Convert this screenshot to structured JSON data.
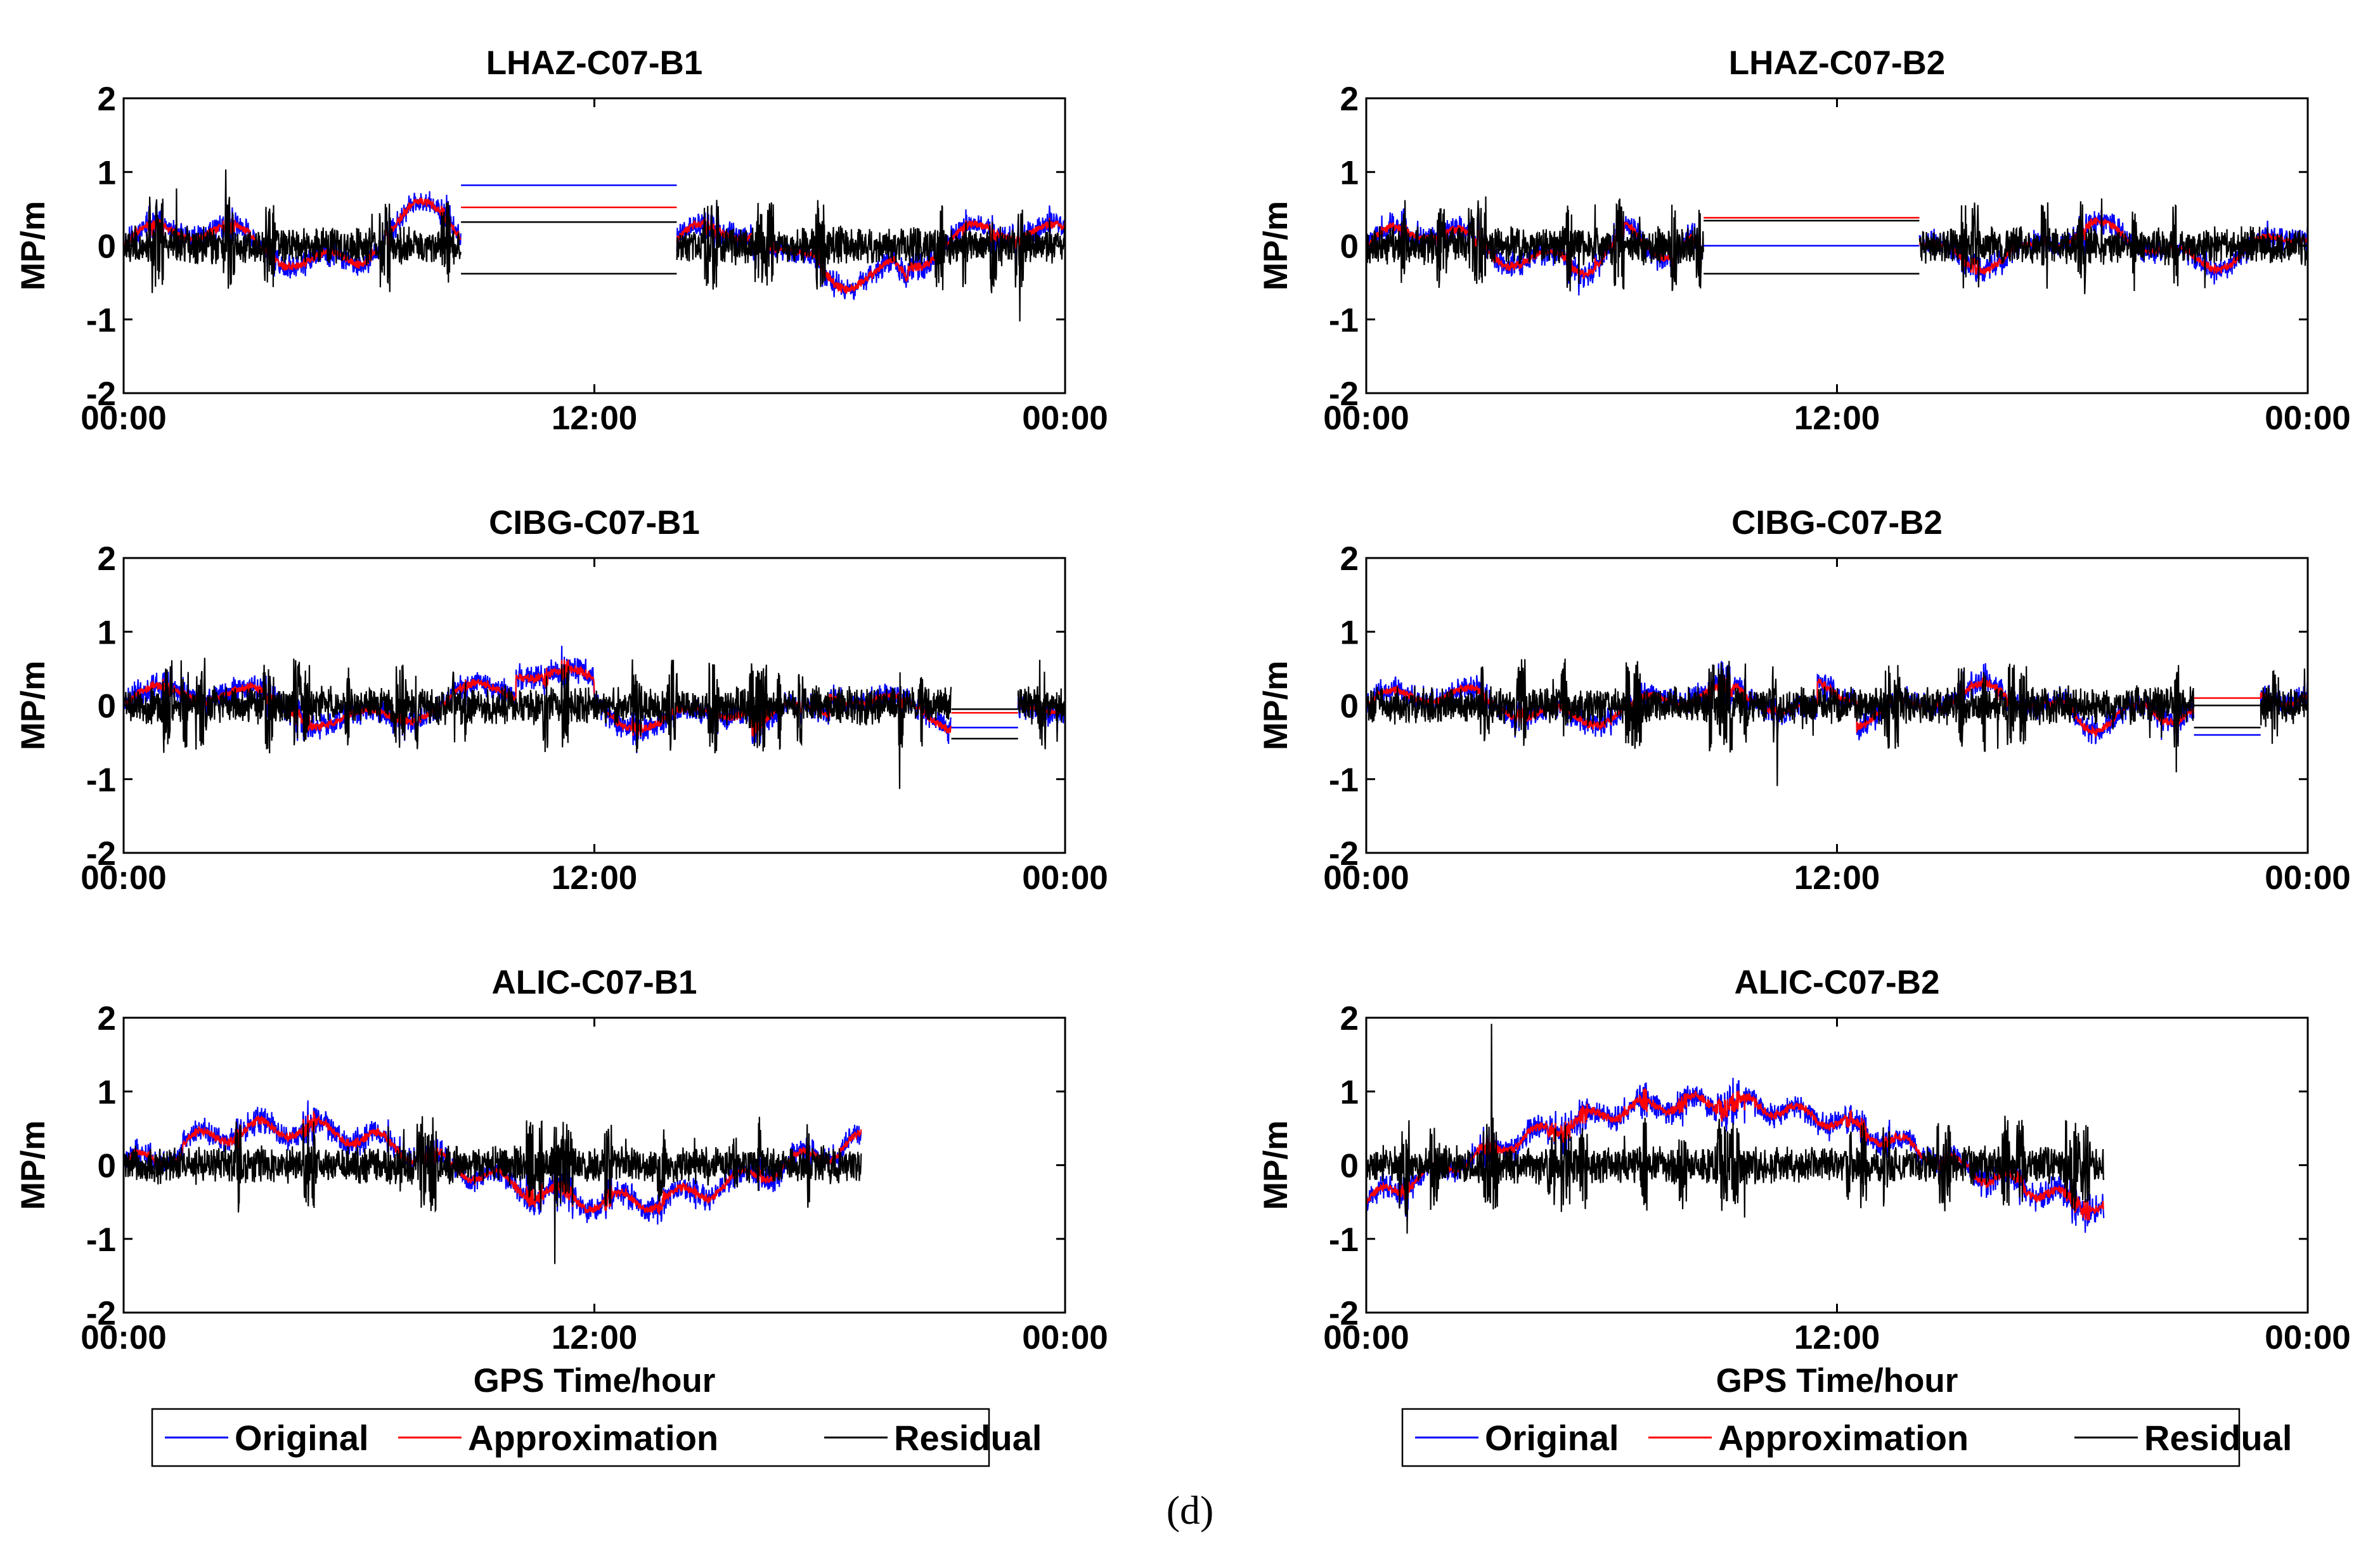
{
  "figure_caption": "(d)",
  "legend": {
    "entries": [
      {
        "label": "Original",
        "color": "#0000ff"
      },
      {
        "label": "Approximation",
        "color": "#ff0000"
      },
      {
        "label": "Residual",
        "color": "#000000"
      }
    ]
  },
  "chart_data": [
    {
      "type": "line",
      "title": "LHAZ-C07-B1",
      "xlabel": "",
      "ylabel": "MP/m",
      "xlim": [
        0,
        24
      ],
      "ylim": [
        -2,
        2
      ],
      "xticks": [
        0,
        12,
        24
      ],
      "xtick_labels": [
        "00:00",
        "12:00",
        "00:00"
      ],
      "yticks": [
        -2,
        -1,
        0,
        1,
        2
      ],
      "series_names": [
        "Original",
        "Approximation",
        "Residual"
      ],
      "gaps": [
        {
          "start": 8.6,
          "end": 14.1,
          "original": 0.82,
          "approximation": 0.52,
          "residual_high": 0.32,
          "residual_low": -0.38
        }
      ]
    },
    {
      "type": "line",
      "title": "LHAZ-C07-B2",
      "xlabel": "",
      "ylabel": "MP/m",
      "xlim": [
        0,
        24
      ],
      "ylim": [
        -2,
        2
      ],
      "xticks": [
        0,
        12,
        24
      ],
      "xtick_labels": [
        "00:00",
        "12:00",
        "00:00"
      ],
      "yticks": [
        -2,
        -1,
        0,
        1,
        2
      ],
      "series_names": [
        "Original",
        "Approximation",
        "Residual"
      ],
      "gaps": [
        {
          "start": 8.6,
          "end": 14.1,
          "original": 0.0,
          "approximation": 0.38,
          "residual_high": 0.34,
          "residual_low": -0.38
        }
      ]
    },
    {
      "type": "line",
      "title": "CIBG-C07-B1",
      "xlabel": "",
      "ylabel": "MP/m",
      "xlim": [
        0,
        24
      ],
      "ylim": [
        -2,
        2
      ],
      "xticks": [
        0,
        12,
        24
      ],
      "xtick_labels": [
        "00:00",
        "12:00",
        "00:00"
      ],
      "yticks": [
        -2,
        -1,
        0,
        1,
        2
      ],
      "series_names": [
        "Original",
        "Approximation",
        "Residual"
      ],
      "gaps": [
        {
          "start": 21.1,
          "end": 22.8,
          "original": -0.3,
          "approximation": -0.1,
          "residual_high": -0.05,
          "residual_low": -0.45
        }
      ]
    },
    {
      "type": "line",
      "title": "CIBG-C07-B2",
      "xlabel": "",
      "ylabel": "MP/m",
      "xlim": [
        0,
        24
      ],
      "ylim": [
        -2,
        2
      ],
      "xticks": [
        0,
        12,
        24
      ],
      "xtick_labels": [
        "00:00",
        "12:00",
        "00:00"
      ],
      "yticks": [
        -2,
        -1,
        0,
        1,
        2
      ],
      "series_names": [
        "Original",
        "Approximation",
        "Residual"
      ],
      "gaps": [
        {
          "start": 21.1,
          "end": 22.8,
          "original": -0.4,
          "approximation": 0.1,
          "residual_high": 0.0,
          "residual_low": -0.3
        }
      ]
    },
    {
      "type": "line",
      "title": "ALIC-C07-B1",
      "xlabel": "GPS Time/hour",
      "ylabel": "MP/m",
      "xlim": [
        0,
        24
      ],
      "ylim": [
        -2,
        2
      ],
      "xticks": [
        0,
        12,
        24
      ],
      "xtick_labels": [
        "00:00",
        "12:00",
        "00:00"
      ],
      "yticks": [
        -2,
        -1,
        0,
        1,
        2
      ],
      "series_names": [
        "Original",
        "Approximation",
        "Residual"
      ],
      "data_end_hour": 18.8,
      "gaps": []
    },
    {
      "type": "line",
      "title": "ALIC-C07-B2",
      "xlabel": "GPS Time/hour",
      "ylabel": "MP/m",
      "xlim": [
        0,
        24
      ],
      "ylim": [
        -2,
        2
      ],
      "xticks": [
        0,
        12,
        24
      ],
      "xtick_labels": [
        "00:00",
        "12:00",
        "00:00"
      ],
      "yticks": [
        -2,
        -1,
        0,
        1,
        2
      ],
      "series_names": [
        "Original",
        "Approximation",
        "Residual"
      ],
      "data_end_hour": 18.8,
      "gaps": []
    }
  ]
}
